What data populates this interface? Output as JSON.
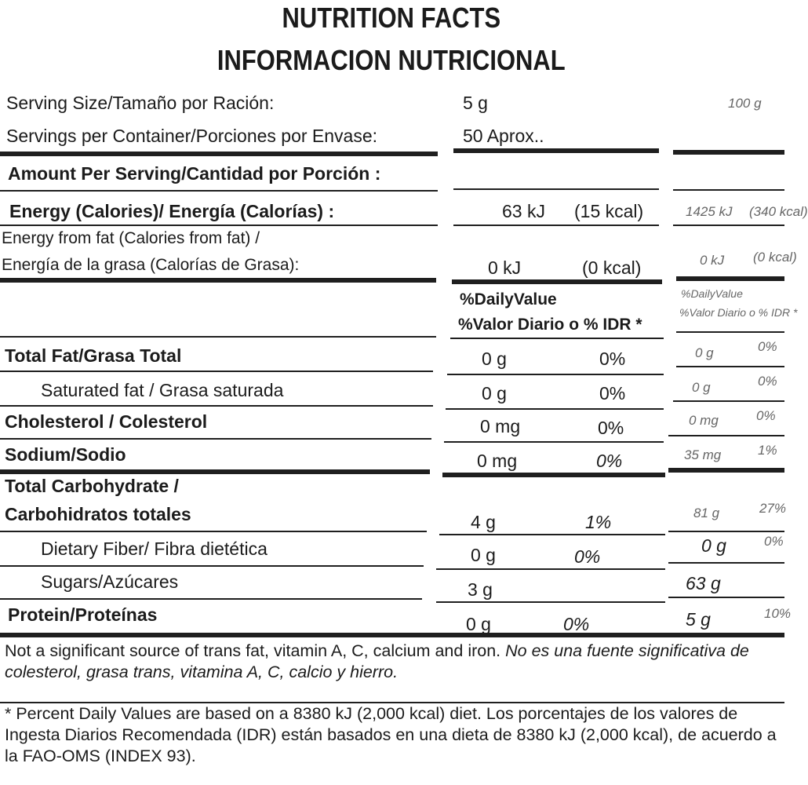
{
  "title": {
    "line1": "NUTRITION  FACTS",
    "line2": "INFORMACION NUTRICIONAL"
  },
  "serving": {
    "size_label": "Serving Size/Tamaño por Ración:",
    "size_value": "5 g",
    "size_value_100": "100 g",
    "per_container_label": "Servings per Container/Porciones por Envase:",
    "per_container_value": "50 Aprox.."
  },
  "amount_header": "Amount Per Serving/Cantidad por Porción :",
  "energy": {
    "label": "Energy (Calories)/ Energía (Calorías) :",
    "kj": "63 kJ",
    "kcal": "(15 kcal)",
    "kj_100": "1425 kJ",
    "kcal_100": "(340 kcal)"
  },
  "energy_fat": {
    "label1": "Energy from fat (Calories from fat) /",
    "label2": "Energía de la grasa (Calorías de Grasa):",
    "kj": "0 kJ",
    "kcal": "(0 kcal)",
    "kj_100": "0 kJ",
    "kcal_100": "(0 kcal)"
  },
  "dv_header": {
    "line1": "%DailyValue",
    "line2": "%Valor Diario o % IDR *",
    "line1_100": "%DailyValue",
    "line2_100": "%Valor Diario o % IDR *"
  },
  "nutrients": [
    {
      "label": "Total Fat/Grasa Total",
      "amount": "0  g",
      "dv": "0%",
      "amount_100": "0  g",
      "dv_100": "0%"
    },
    {
      "label": "Saturated fat / Grasa saturada",
      "amount": "0  g",
      "dv": "0%",
      "amount_100": "0  g",
      "dv_100": "0%"
    },
    {
      "label": "Cholesterol / Colesterol",
      "amount": "0  mg",
      "dv": "0%",
      "amount_100": "0  mg",
      "dv_100": "0%"
    },
    {
      "label": "Sodium/Sodio",
      "amount": "0  mg",
      "dv": "0%",
      "amount_100": "35  mg",
      "dv_100": "1%"
    },
    {
      "label": "Total Carbohydrate /",
      "label2": "Carbohidratos totales",
      "amount": "4  g",
      "dv": "1%",
      "amount_100": "81  g",
      "dv_100": "27%"
    },
    {
      "label": "Dietary Fiber/ Fibra dietética",
      "amount": "0  g",
      "dv": "0%",
      "amount_100": "0  g",
      "dv_100": "0%"
    },
    {
      "label": "Sugars/Azúcares",
      "amount": "3  g",
      "amount_100": "63  g"
    },
    {
      "label": "Protein/Proteínas",
      "amount": "0  g",
      "dv": "0%",
      "amount_100": "5  g",
      "dv_100": "10%"
    }
  ],
  "footer": {
    "note_en": "Not a significant source of trans fat, vitamin A, C, calcium and iron.",
    "note_es": "No es una fuente significativa de colesterol, grasa trans, vitamina A, C, calcio y hierro.",
    "dv_en": "* Percent Daily Values are based on a 8380 kJ (2,000 kcal) diet.",
    "dv_es": "Los porcentajes de los valores de Ingesta Diarios Recomendada (IDR) están basados en una dieta de 8380 kJ (2,000 kcal), de acuerdo a la FAO-OMS (INDEX 93)."
  }
}
